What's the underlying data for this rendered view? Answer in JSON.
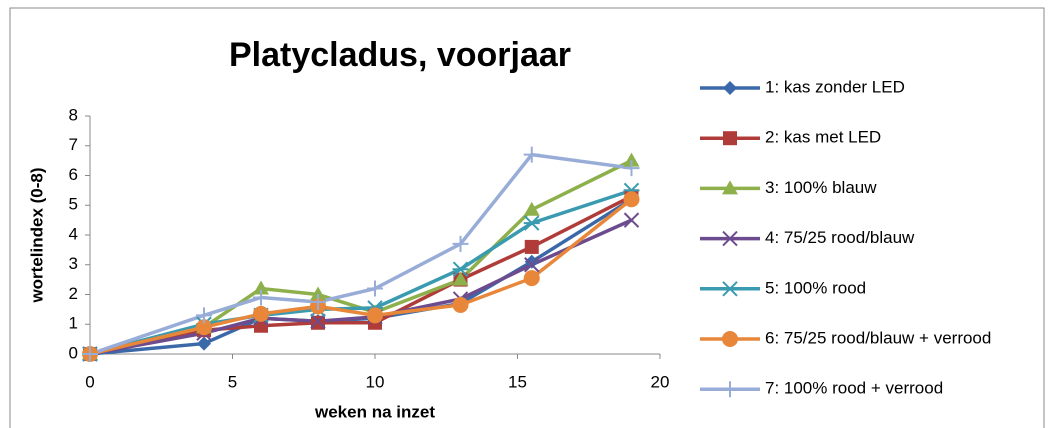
{
  "chart_data": {
    "type": "line",
    "title": "Platycladus, voorjaar",
    "x_label": "weken na inzet",
    "y_label": "wortelindex (0-8)",
    "x": [
      0,
      4,
      6,
      8,
      10,
      13,
      15.5,
      19
    ],
    "xlim": [
      0,
      20
    ],
    "xticks": [
      0,
      5,
      10,
      15,
      20
    ],
    "ylim": [
      0,
      8
    ],
    "yticks": [
      0,
      1,
      2,
      3,
      4,
      5,
      6,
      7,
      8
    ],
    "grid": false,
    "legend": "right",
    "series": [
      {
        "name": "1: kas zonder LED",
        "color": "#3a68a8",
        "marker": "diamond",
        "values": [
          0,
          0.35,
          1.2,
          1.1,
          1.2,
          1.7,
          3.1,
          5.2
        ]
      },
      {
        "name": "2: kas met LED",
        "color": "#b03c3a",
        "marker": "square",
        "values": [
          0,
          0.8,
          0.95,
          1.05,
          1.05,
          2.5,
          3.6,
          5.3
        ]
      },
      {
        "name": "3: 100% blauw",
        "color": "#8db04a",
        "marker": "triangle",
        "values": [
          0,
          0.9,
          2.2,
          2.0,
          1.4,
          2.5,
          4.85,
          6.5
        ]
      },
      {
        "name": "4: 75/25 rood/blauw",
        "color": "#6c4c8e",
        "marker": "x",
        "values": [
          0,
          0.7,
          1.2,
          1.1,
          1.25,
          1.85,
          3.0,
          4.5
        ]
      },
      {
        "name": "5: 100% rood",
        "color": "#3a9bb0",
        "marker": "star",
        "values": [
          0,
          1.0,
          1.3,
          1.5,
          1.55,
          2.85,
          4.4,
          5.5
        ]
      },
      {
        "name": "6: 75/25 rood/blauw + verrood",
        "color": "#e8873a",
        "marker": "circle",
        "values": [
          0,
          0.9,
          1.35,
          1.6,
          1.3,
          1.65,
          2.55,
          5.2
        ]
      },
      {
        "name": "7: 100% rood + verrood",
        "color": "#98acd8",
        "marker": "plus",
        "values": [
          0,
          1.3,
          1.9,
          1.75,
          2.2,
          3.7,
          6.7,
          6.25
        ]
      }
    ]
  }
}
